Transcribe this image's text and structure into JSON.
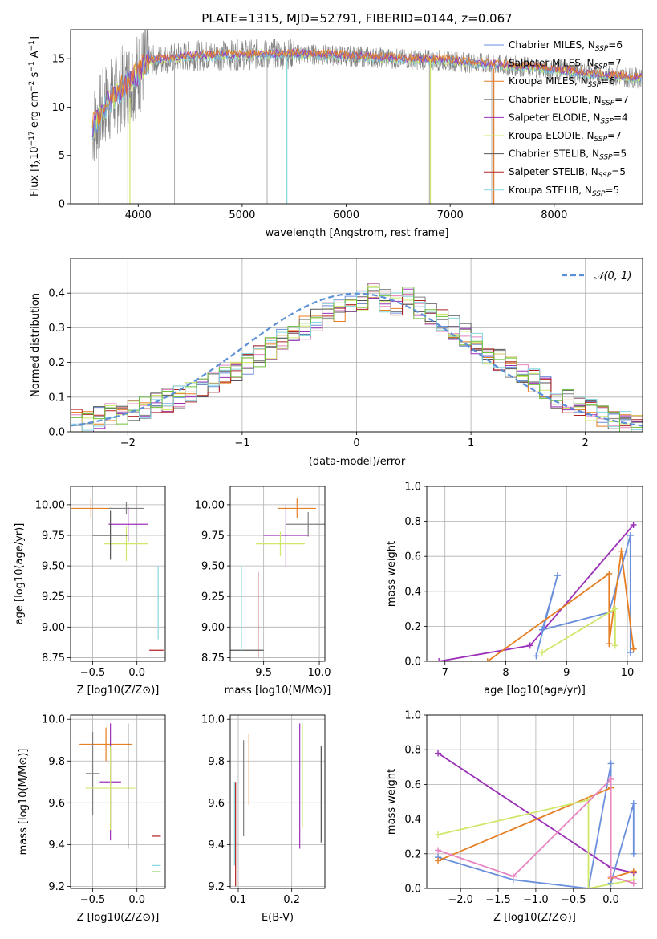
{
  "figure": {
    "title": "PLATE=1315, MJD=52791, FIBERID=0144, z=0.067"
  },
  "colors": {
    "chabrier_miles": "#6a8fdc",
    "salpeter_miles": "#e884c0",
    "kroupa_miles": "#e67e22",
    "chabrier_elodie": "#7f7f7f",
    "salpeter_elodie": "#9b30b8",
    "kroupa_elodie": "#cfe86a",
    "chabrier_stelib": "#555555",
    "salpeter_stelib": "#b22222",
    "kroupa_stelib": "#86d8e0",
    "green": "#6fc03a",
    "normal": "#5b8fd6"
  },
  "chart_data": [
    {
      "id": "spectrum",
      "type": "line",
      "title": "PLATE=1315, MJD=52791, FIBERID=0144, z=0.067",
      "xlabel": "wavelength [Angstrom, rest frame]",
      "ylabel": "Flux [f_λ 10^-17 erg cm^-2 s^-1 A^-1]",
      "xlim": [
        3350,
        8850
      ],
      "ylim": [
        0,
        18
      ],
      "xticks": [
        "4000",
        "5000",
        "6000",
        "7000",
        "8000"
      ],
      "yticks": [
        "0",
        "5",
        "10",
        "15"
      ],
      "grid": false,
      "legend_position": "top-right",
      "legend": [
        {
          "label": "Chabrier MILES, N",
          "sub": "SSP",
          "eq": "=6"
        },
        {
          "label": "Salpeter MILES, N",
          "sub": "SSP",
          "eq": "=7"
        },
        {
          "label": "Kroupa MILES, N",
          "sub": "SSP",
          "eq": "=6"
        },
        {
          "label": "Chabrier ELODIE, N",
          "sub": "SSP",
          "eq": "=7"
        },
        {
          "label": "Salpeter ELODIE, N",
          "sub": "SSP",
          "eq": "=4"
        },
        {
          "label": "Kroupa ELODIE, N",
          "sub": "SSP",
          "eq": "=7"
        },
        {
          "label": "Chabrier STELIB, N",
          "sub": "SSP",
          "eq": "=5"
        },
        {
          "label": "Salpeter STELIB, N",
          "sub": "SSP",
          "eq": "=5"
        },
        {
          "label": "Kroupa STELIB, N",
          "sub": "SSP",
          "eq": "=5"
        }
      ],
      "series": {
        "data_continuum": [
          [
            3560,
            8
          ],
          [
            3600,
            8.5
          ],
          [
            3700,
            10.5
          ],
          [
            3800,
            11.5
          ],
          [
            3900,
            12.5
          ],
          [
            4000,
            13.5
          ],
          [
            4100,
            14.8
          ],
          [
            4300,
            15
          ],
          [
            4500,
            15.3
          ],
          [
            5000,
            15.4
          ],
          [
            5500,
            15.5
          ],
          [
            6000,
            15.3
          ],
          [
            6500,
            15
          ],
          [
            7000,
            14.8
          ],
          [
            7400,
            14.4
          ],
          [
            7800,
            14.1
          ],
          [
            8200,
            13.6
          ],
          [
            8800,
            13
          ]
        ],
        "spikes": [
          [
            3620,
            0
          ],
          [
            3900,
            0
          ],
          [
            4350,
            0
          ],
          [
            5240,
            0
          ],
          [
            5430,
            0
          ],
          [
            6800,
            0
          ],
          [
            7400,
            0
          ]
        ]
      }
    },
    {
      "id": "residuals",
      "type": "line",
      "xlabel": "(data-model)/error",
      "ylabel": "Normed distribution",
      "xlim": [
        -2.5,
        2.5
      ],
      "ylim": [
        0,
        0.5
      ],
      "xticks": [
        "-2",
        "-1",
        "0",
        "1",
        "2"
      ],
      "yticks": [
        "0.0",
        "0.1",
        "0.2",
        "0.3",
        "0.4"
      ],
      "grid": true,
      "legend_position": "top-right",
      "legend": [
        {
          "label": "𝒩(0, 1)"
        }
      ],
      "hist_bins": [
        -2.5,
        2.5,
        50
      ],
      "hist_series": [
        [
          0.03,
          0.028,
          0.04,
          0.05,
          0.045,
          0.06,
          0.07,
          0.08,
          0.09,
          0.1,
          0.11,
          0.12,
          0.14,
          0.16,
          0.18,
          0.2,
          0.22,
          0.24,
          0.27,
          0.29,
          0.3,
          0.32,
          0.34,
          0.35,
          0.37,
          0.38,
          0.4,
          0.38,
          0.37,
          0.39,
          0.36,
          0.34,
          0.32,
          0.3,
          0.28,
          0.26,
          0.23,
          0.21,
          0.19,
          0.17,
          0.15,
          0.13,
          0.1,
          0.09,
          0.08,
          0.06,
          0.05,
          0.04,
          0.03,
          0.02
        ]
      ]
    },
    {
      "id": "age_vs_Z",
      "type": "scatter",
      "xlabel": "Z [log10(Z/Z⊙)]",
      "ylabel": "age [log10(age/yr)]",
      "xlim": [
        -0.75,
        0.32
      ],
      "ylim": [
        8.72,
        10.15
      ],
      "xticks": [
        "-0.5",
        "0.0"
      ],
      "yticks": [
        "8.75",
        "9.00",
        "9.25",
        "9.50",
        "9.75",
        "10.00"
      ],
      "grid": true,
      "points": [
        {
          "x": -0.52,
          "y": 9.97,
          "xerr": 0.25,
          "yerr": 0.08
        },
        {
          "x": -0.12,
          "y": 9.97,
          "xerr": 0.2,
          "yerr": 0.05
        },
        {
          "x": -0.1,
          "y": 9.84,
          "xerr": 0.22,
          "yerr": 0.14
        },
        {
          "x": -0.12,
          "y": 9.68,
          "xerr": 0.25,
          "yerr": 0.14
        },
        {
          "x": -0.3,
          "y": 9.75,
          "xerr": 0.2,
          "yerr": 0.2
        },
        {
          "x": 0.22,
          "y": 8.81,
          "xerr": 0.08,
          "yerr": 0.0
        },
        {
          "x": 0.24,
          "y": 9.2,
          "xerr": 0.0,
          "yerr": 0.3
        }
      ]
    },
    {
      "id": "age_vs_mass",
      "type": "scatter",
      "xlabel": "mass [log10(M/M⊙)]",
      "ylabel": "",
      "xlim": [
        9.2,
        10.05
      ],
      "ylim": [
        8.72,
        10.15
      ],
      "xticks": [
        "9.5",
        "10.0"
      ],
      "yticks": [
        "8.75",
        "9.00",
        "9.25",
        "9.50",
        "9.75",
        "10.00"
      ],
      "grid": true,
      "points": [
        {
          "x": 9.8,
          "y": 9.97,
          "xerr": 0.17,
          "yerr": 0.08
        },
        {
          "x": 9.9,
          "y": 9.84,
          "xerr": 0.2,
          "yerr": 0.1
        },
        {
          "x": 9.7,
          "y": 9.75,
          "xerr": 0.2,
          "yerr": 0.25
        },
        {
          "x": 9.65,
          "y": 9.68,
          "xerr": 0.22,
          "yerr": 0.1
        },
        {
          "x": 9.35,
          "y": 8.81,
          "xerr": 0.15,
          "yerr": 0.0
        },
        {
          "x": 9.45,
          "y": 9.1,
          "xerr": 0.0,
          "yerr": 0.35
        },
        {
          "x": 9.3,
          "y": 9.15,
          "xerr": 0.0,
          "yerr": 0.35
        }
      ]
    },
    {
      "id": "massweight_vs_age",
      "type": "line",
      "xlabel": "age [log10(age/yr)]",
      "ylabel": "mass weight",
      "xlim": [
        6.7,
        10.25
      ],
      "ylim": [
        0,
        1.0
      ],
      "xticks": [
        "7",
        "8",
        "9",
        "10"
      ],
      "yticks": [
        "0.0",
        "0.2",
        "0.4",
        "0.6",
        "0.8",
        "1.0"
      ],
      "grid": true,
      "series": [
        {
          "values": [
            [
              6.9,
              0
            ],
            [
              8.4,
              0.09
            ],
            [
              10.1,
              0.78
            ]
          ]
        },
        {
          "values": [
            [
              8.5,
              0.03
            ],
            [
              8.85,
              0.49
            ],
            [
              8.6,
              0.18
            ],
            [
              9.7,
              0.28
            ],
            [
              10.05,
              0.72
            ],
            [
              10.05,
              0.05
            ]
          ]
        },
        {
          "values": [
            [
              7.7,
              0
            ],
            [
              9.7,
              0.5
            ],
            [
              9.7,
              0.1
            ],
            [
              9.9,
              0.63
            ],
            [
              10.1,
              0.07
            ]
          ]
        },
        {
          "values": [
            [
              8.6,
              0.05
            ],
            [
              9.8,
              0.3
            ],
            [
              9.8,
              0.09
            ]
          ]
        }
      ]
    },
    {
      "id": "mass_vs_Z",
      "type": "scatter",
      "xlabel": "Z [log10(Z/Z⊙)]",
      "ylabel": "mass [log10(M/M⊙)]",
      "xlim": [
        -0.75,
        0.32
      ],
      "ylim": [
        9.19,
        10.02
      ],
      "xticks": [
        "-0.5",
        "0.0"
      ],
      "yticks": [
        "9.2",
        "9.4",
        "9.6",
        "9.8",
        "10.0"
      ],
      "grid": true,
      "points": [
        {
          "x": -0.35,
          "y": 9.88,
          "xerr": 0.3,
          "yerr": 0.08
        },
        {
          "x": -0.5,
          "y": 9.74,
          "xerr": 0.08,
          "yerr": 0.2
        },
        {
          "x": -0.3,
          "y": 9.7,
          "xerr": 0.12,
          "yerr": 0.28
        },
        {
          "x": -0.3,
          "y": 9.67,
          "xerr": 0.28,
          "yerr": 0.2
        },
        {
          "x": -0.1,
          "y": 9.68,
          "xerr": 0.0,
          "yerr": 0.3
        },
        {
          "x": 0.22,
          "y": 9.44,
          "xerr": 0.05,
          "yerr": 0.0
        },
        {
          "x": 0.22,
          "y": 9.3,
          "xerr": 0.05,
          "yerr": 0.0
        },
        {
          "x": 0.22,
          "y": 9.27,
          "xerr": 0.05,
          "yerr": 0.0
        }
      ]
    },
    {
      "id": "mass_vs_ebv",
      "type": "scatter",
      "xlabel": "E(B-V)",
      "ylabel": "",
      "xlim": [
        0.085,
        0.262
      ],
      "ylim": [
        9.19,
        10.02
      ],
      "xticks": [
        "0.1",
        "0.2"
      ],
      "yticks": [
        "9.2",
        "9.4",
        "9.6",
        "9.8",
        "10.0"
      ],
      "grid": true,
      "points": [
        {
          "x": 0.12,
          "y": 9.76,
          "xerr": 0.0,
          "yerr": 0.17
        },
        {
          "x": 0.11,
          "y": 9.67,
          "xerr": 0.0,
          "yerr": 0.23
        },
        {
          "x": 0.215,
          "y": 9.68,
          "xerr": 0.0,
          "yerr": 0.3
        },
        {
          "x": 0.22,
          "y": 9.73,
          "xerr": 0.0,
          "yerr": 0.25
        },
        {
          "x": 0.255,
          "y": 9.64,
          "xerr": 0.0,
          "yerr": 0.23
        },
        {
          "x": 0.095,
          "y": 9.45,
          "xerr": 0.0,
          "yerr": 0.25
        },
        {
          "x": 0.093,
          "y": 9.5,
          "xerr": 0.0,
          "yerr": 0.2
        }
      ]
    },
    {
      "id": "massweight_vs_Z",
      "type": "line",
      "xlabel": "Z [log10(Z/Z⊙)]",
      "ylabel": "mass weight",
      "xlim": [
        -2.45,
        0.42
      ],
      "ylim": [
        0,
        1.0
      ],
      "xticks": [
        "-2.0",
        "-1.5",
        "-1.0",
        "-0.5",
        "0.0"
      ],
      "yticks": [
        "0.0",
        "0.2",
        "0.4",
        "0.6",
        "0.8",
        "1.0"
      ],
      "grid": true,
      "series": [
        {
          "values": [
            [
              -2.3,
              0.78
            ],
            [
              0,
              0.12
            ],
            [
              0.3,
              0.09
            ]
          ]
        },
        {
          "values": [
            [
              -2.3,
              0.18
            ],
            [
              -1.3,
              0.05
            ],
            [
              -0.3,
              0.0
            ],
            [
              0,
              0.72
            ],
            [
              0,
              0.03
            ],
            [
              0.3,
              0.49
            ],
            [
              0.3,
              0.2
            ]
          ]
        },
        {
          "values": [
            [
              -2.3,
              0.16
            ],
            [
              0,
              0.58
            ],
            [
              0,
              0.06
            ],
            [
              0.3,
              0.1
            ]
          ]
        },
        {
          "values": [
            [
              -2.3,
              0.31
            ],
            [
              -0.3,
              0.51
            ],
            [
              -0.3,
              0.0
            ],
            [
              0.3,
              0.05
            ]
          ]
        },
        {
          "values": [
            [
              -2.3,
              0.22
            ],
            [
              -1.3,
              0.07
            ],
            [
              0,
              0.63
            ],
            [
              0,
              0.07
            ],
            [
              0.3,
              0.03
            ]
          ]
        }
      ]
    }
  ]
}
